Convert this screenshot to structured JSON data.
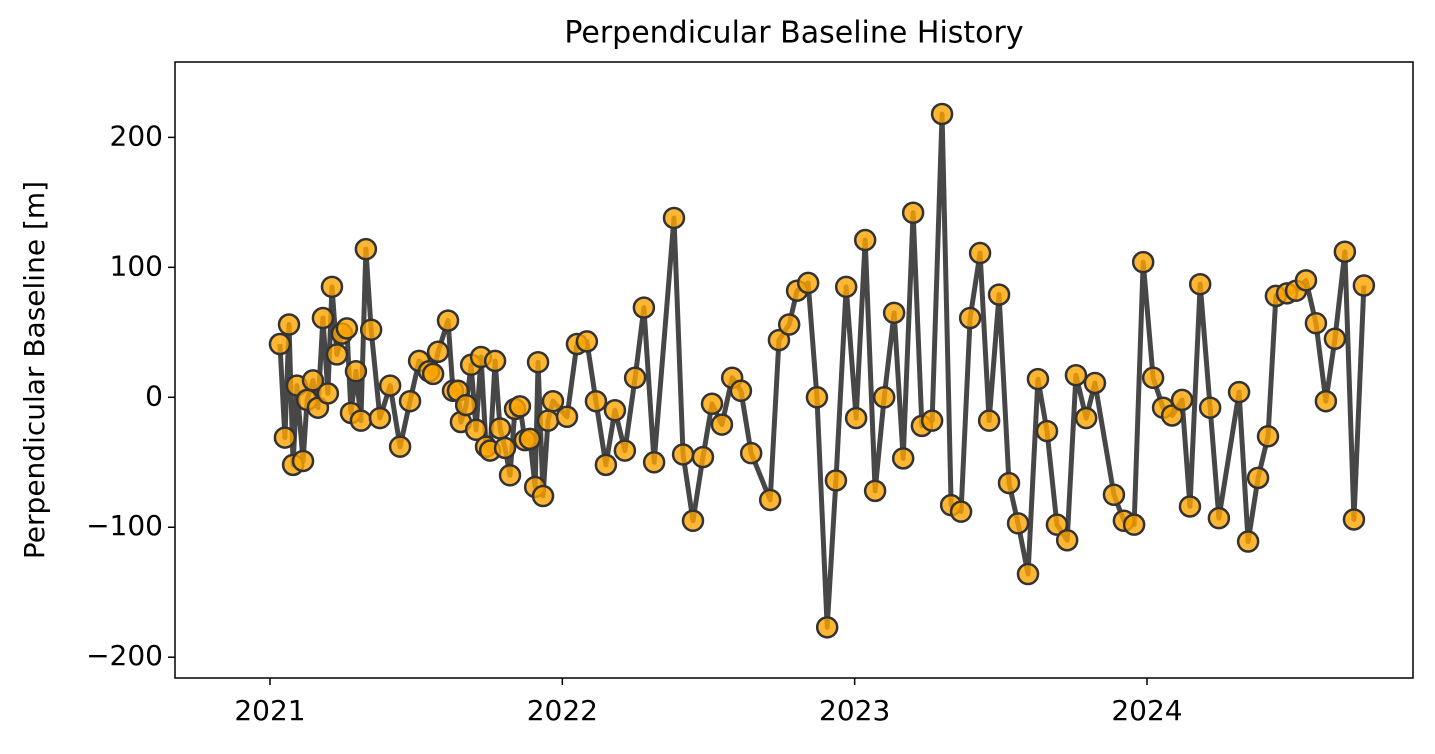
{
  "chart_data": {
    "type": "line",
    "title": "Perpendicular Baseline History",
    "ylabel": "Perpendicular Baseline [m]",
    "line_color": "#333333",
    "marker_color": "#ffa500",
    "marker_edge_color": "#333333",
    "xlim": [
      2020.675,
      2024.91
    ],
    "ylim": [
      -216,
      258
    ],
    "xticks": [
      2021,
      2022,
      2023,
      2024
    ],
    "yticks": [
      {
        "value": -200,
        "label": "−200"
      },
      {
        "value": -100,
        "label": "−100"
      },
      0,
      100,
      200
    ],
    "x": [
      2021.034,
      2021.051,
      2021.065,
      2021.079,
      2021.092,
      2021.113,
      2021.127,
      2021.147,
      2021.164,
      2021.181,
      2021.198,
      2021.212,
      2021.229,
      2021.246,
      2021.263,
      2021.277,
      2021.294,
      2021.311,
      2021.328,
      2021.346,
      2021.376,
      2021.411,
      2021.445,
      2021.479,
      2021.51,
      2021.544,
      2021.558,
      2021.575,
      2021.609,
      2021.626,
      2021.643,
      2021.653,
      2021.671,
      2021.688,
      2021.705,
      2021.722,
      2021.739,
      2021.753,
      2021.77,
      2021.787,
      2021.804,
      2021.821,
      2021.838,
      2021.855,
      2021.872,
      2021.889,
      2021.907,
      2021.917,
      2021.934,
      2021.951,
      2021.968,
      2022.016,
      2022.05,
      2022.084,
      2022.115,
      2022.149,
      2022.18,
      2022.214,
      2022.249,
      2022.279,
      2022.314,
      2022.382,
      2022.413,
      2022.447,
      2022.481,
      2022.512,
      2022.546,
      2022.581,
      2022.611,
      2022.646,
      2022.711,
      2022.741,
      2022.776,
      2022.803,
      2022.841,
      2022.871,
      2022.906,
      2022.936,
      2022.971,
      2023.005,
      2023.036,
      2023.07,
      2023.101,
      2023.135,
      2023.166,
      2023.2,
      2023.23,
      2023.265,
      2023.299,
      2023.33,
      2023.364,
      2023.395,
      2023.429,
      2023.46,
      2023.494,
      2023.528,
      2023.559,
      2023.593,
      2023.627,
      2023.658,
      2023.692,
      2023.727,
      2023.757,
      2023.792,
      2023.822,
      2023.887,
      2023.921,
      2023.956,
      2023.987,
      2024.021,
      2024.055,
      2024.086,
      2024.12,
      2024.147,
      2024.182,
      2024.216,
      2024.246,
      2024.315,
      2024.346,
      2024.38,
      2024.414,
      2024.441,
      2024.479,
      2024.51,
      2024.544,
      2024.578,
      2024.612,
      2024.643,
      2024.677,
      2024.708,
      2024.742
    ],
    "values": [
      41,
      -31,
      56,
      -52,
      9,
      -49,
      -2,
      13,
      -8,
      61,
      3,
      85,
      33,
      49,
      53,
      -12,
      20,
      -18,
      114,
      52,
      -16,
      9,
      -38,
      -3,
      28,
      20,
      18,
      35,
      59,
      5,
      5,
      -19,
      -6,
      25,
      -25,
      31,
      -38,
      -41,
      28,
      -24,
      -39,
      -60,
      -9,
      -7,
      -33,
      -32,
      -69,
      27,
      -76,
      -18,
      -3,
      -15,
      41,
      43,
      -3,
      -52,
      -10,
      -41,
      15,
      69,
      -50,
      138,
      -44,
      -95,
      -46,
      -5,
      -21,
      15,
      5,
      -43,
      -79,
      44,
      56,
      82,
      88,
      0,
      -177,
      -64,
      85,
      -16,
      121,
      -72,
      0,
      65,
      -47,
      142,
      -22,
      -18,
      218,
      -83,
      -88,
      61,
      111,
      -18,
      79,
      -66,
      -97,
      -136,
      14,
      -26,
      -98,
      -110,
      17,
      -16,
      11,
      -75,
      -95,
      -98,
      104,
      15,
      -8,
      -14,
      -2,
      -84,
      87,
      -8,
      -93,
      4,
      -111,
      -62,
      -30,
      78,
      80,
      82,
      90,
      57,
      -3,
      45,
      112,
      -94,
      86
    ]
  }
}
